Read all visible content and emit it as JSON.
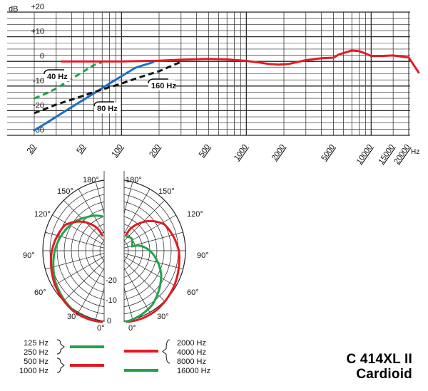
{
  "model": "C 414XL II",
  "pattern": "Cardioid",
  "chart_data": [
    {
      "type": "line",
      "y_unit": "dB",
      "x_unit": "Hz",
      "x_scale": "log",
      "xlim": [
        20,
        20000
      ],
      "ylim": [
        -30,
        20
      ],
      "x_ticks": [
        20,
        50,
        100,
        200,
        500,
        1000,
        2000,
        5000,
        10000,
        15000,
        20000
      ],
      "y_ticks": [
        {
          "value": 20,
          "label": "+20"
        },
        {
          "value": 10,
          "label": "+10"
        },
        {
          "value": 0,
          "label": "0"
        },
        {
          "value": -10,
          "label": "-10"
        },
        {
          "value": -20,
          "label": "-20"
        },
        {
          "value": -30,
          "label": "-30"
        }
      ],
      "grid": true,
      "series": [
        {
          "name": "",
          "color": "#e21b23",
          "style": "solid",
          "x": [
            33,
            50,
            100,
            200,
            300,
            500,
            700,
            1000,
            1200,
            1500,
            1800,
            2200,
            3000,
            4000,
            5000,
            5500,
            6000,
            7000,
            8000,
            9000,
            10000,
            12000,
            15000,
            20000,
            24000
          ],
          "y": [
            0,
            0,
            0,
            0.3,
            0.7,
            1,
            0.8,
            0.2,
            -0.3,
            -1,
            -1.3,
            -1,
            0.5,
            1.3,
            1.5,
            2.8,
            3.4,
            4.4,
            4.2,
            3.2,
            2.2,
            2.2,
            2.4,
            1.6,
            -4.5
          ]
        },
        {
          "name": "40 Hz",
          "color": "#22a24a",
          "style": "dashed",
          "x": [
            20,
            25,
            30,
            40,
            50,
            60,
            70
          ],
          "y": [
            -15,
            -13,
            -11,
            -7,
            -4,
            -1.5,
            -0.3
          ]
        },
        {
          "name": "80 Hz",
          "color": "#1d6fbf",
          "style": "solid",
          "x": [
            20,
            25,
            30,
            40,
            50,
            60,
            80,
            100,
            130,
            180
          ],
          "y": [
            -28,
            -25,
            -22.5,
            -18.5,
            -15.5,
            -13,
            -9,
            -6,
            -2.5,
            -0.3
          ]
        },
        {
          "name": "160 Hz",
          "color": "#111111",
          "style": "dashed",
          "x": [
            20,
            30,
            40,
            60,
            80,
            100,
            130,
            160,
            200,
            260,
            300
          ],
          "y": [
            -21,
            -17.5,
            -15.5,
            -12.5,
            -10.5,
            -9,
            -7,
            -5.5,
            -4,
            -1.5,
            -0.2
          ]
        }
      ],
      "annotations": [
        "40 Hz",
        "80 Hz",
        "160 Hz"
      ]
    },
    {
      "type": "polar",
      "angle_labels": [
        "0°",
        "30°",
        "60°",
        "90°",
        "120°",
        "150°",
        "180°"
      ],
      "radial_labels": [
        "0",
        "-10",
        "-20"
      ],
      "rlim": [
        -25,
        0
      ],
      "series": [
        {
          "name": "125 Hz / 250 Hz",
          "color": "#22a24a",
          "side": "left",
          "angles_deg": [
            0,
            30,
            60,
            90,
            120,
            150,
            180
          ],
          "levels_db": [
            0,
            -0.8,
            -2.6,
            -5.2,
            -8.5,
            -11.5,
            -13
          ]
        },
        {
          "name": "500 Hz / 1000 Hz",
          "color": "#e21b23",
          "side": "left",
          "angles_deg": [
            0,
            30,
            60,
            90,
            120,
            150,
            180
          ],
          "levels_db": [
            0,
            -0.6,
            -2,
            -4,
            -7,
            -14,
            -20
          ]
        },
        {
          "name": "2000 Hz / 4000 Hz / 8000 Hz",
          "color": "#e21b23",
          "side": "right",
          "angles_deg": [
            0,
            30,
            60,
            90,
            120,
            150,
            180
          ],
          "levels_db": [
            0,
            -0.5,
            -1.5,
            -3,
            -6.5,
            -14,
            -20
          ]
        },
        {
          "name": "16000 Hz",
          "color": "#22a24a",
          "side": "right",
          "angles_deg": [
            0,
            30,
            60,
            90,
            120,
            150,
            180
          ],
          "levels_db": [
            0,
            -3,
            -8,
            -15,
            -22,
            -20,
            -20
          ]
        }
      ]
    }
  ],
  "legend": {
    "left_labels": [
      "125 Hz",
      "250 Hz",
      "500 Hz",
      "1000 Hz"
    ],
    "right_labels": [
      "2000 Hz",
      "4000 Hz",
      "8000 Hz",
      "16000 Hz"
    ],
    "colors": {
      "green": "#22a24a",
      "red": "#e21b23"
    }
  }
}
